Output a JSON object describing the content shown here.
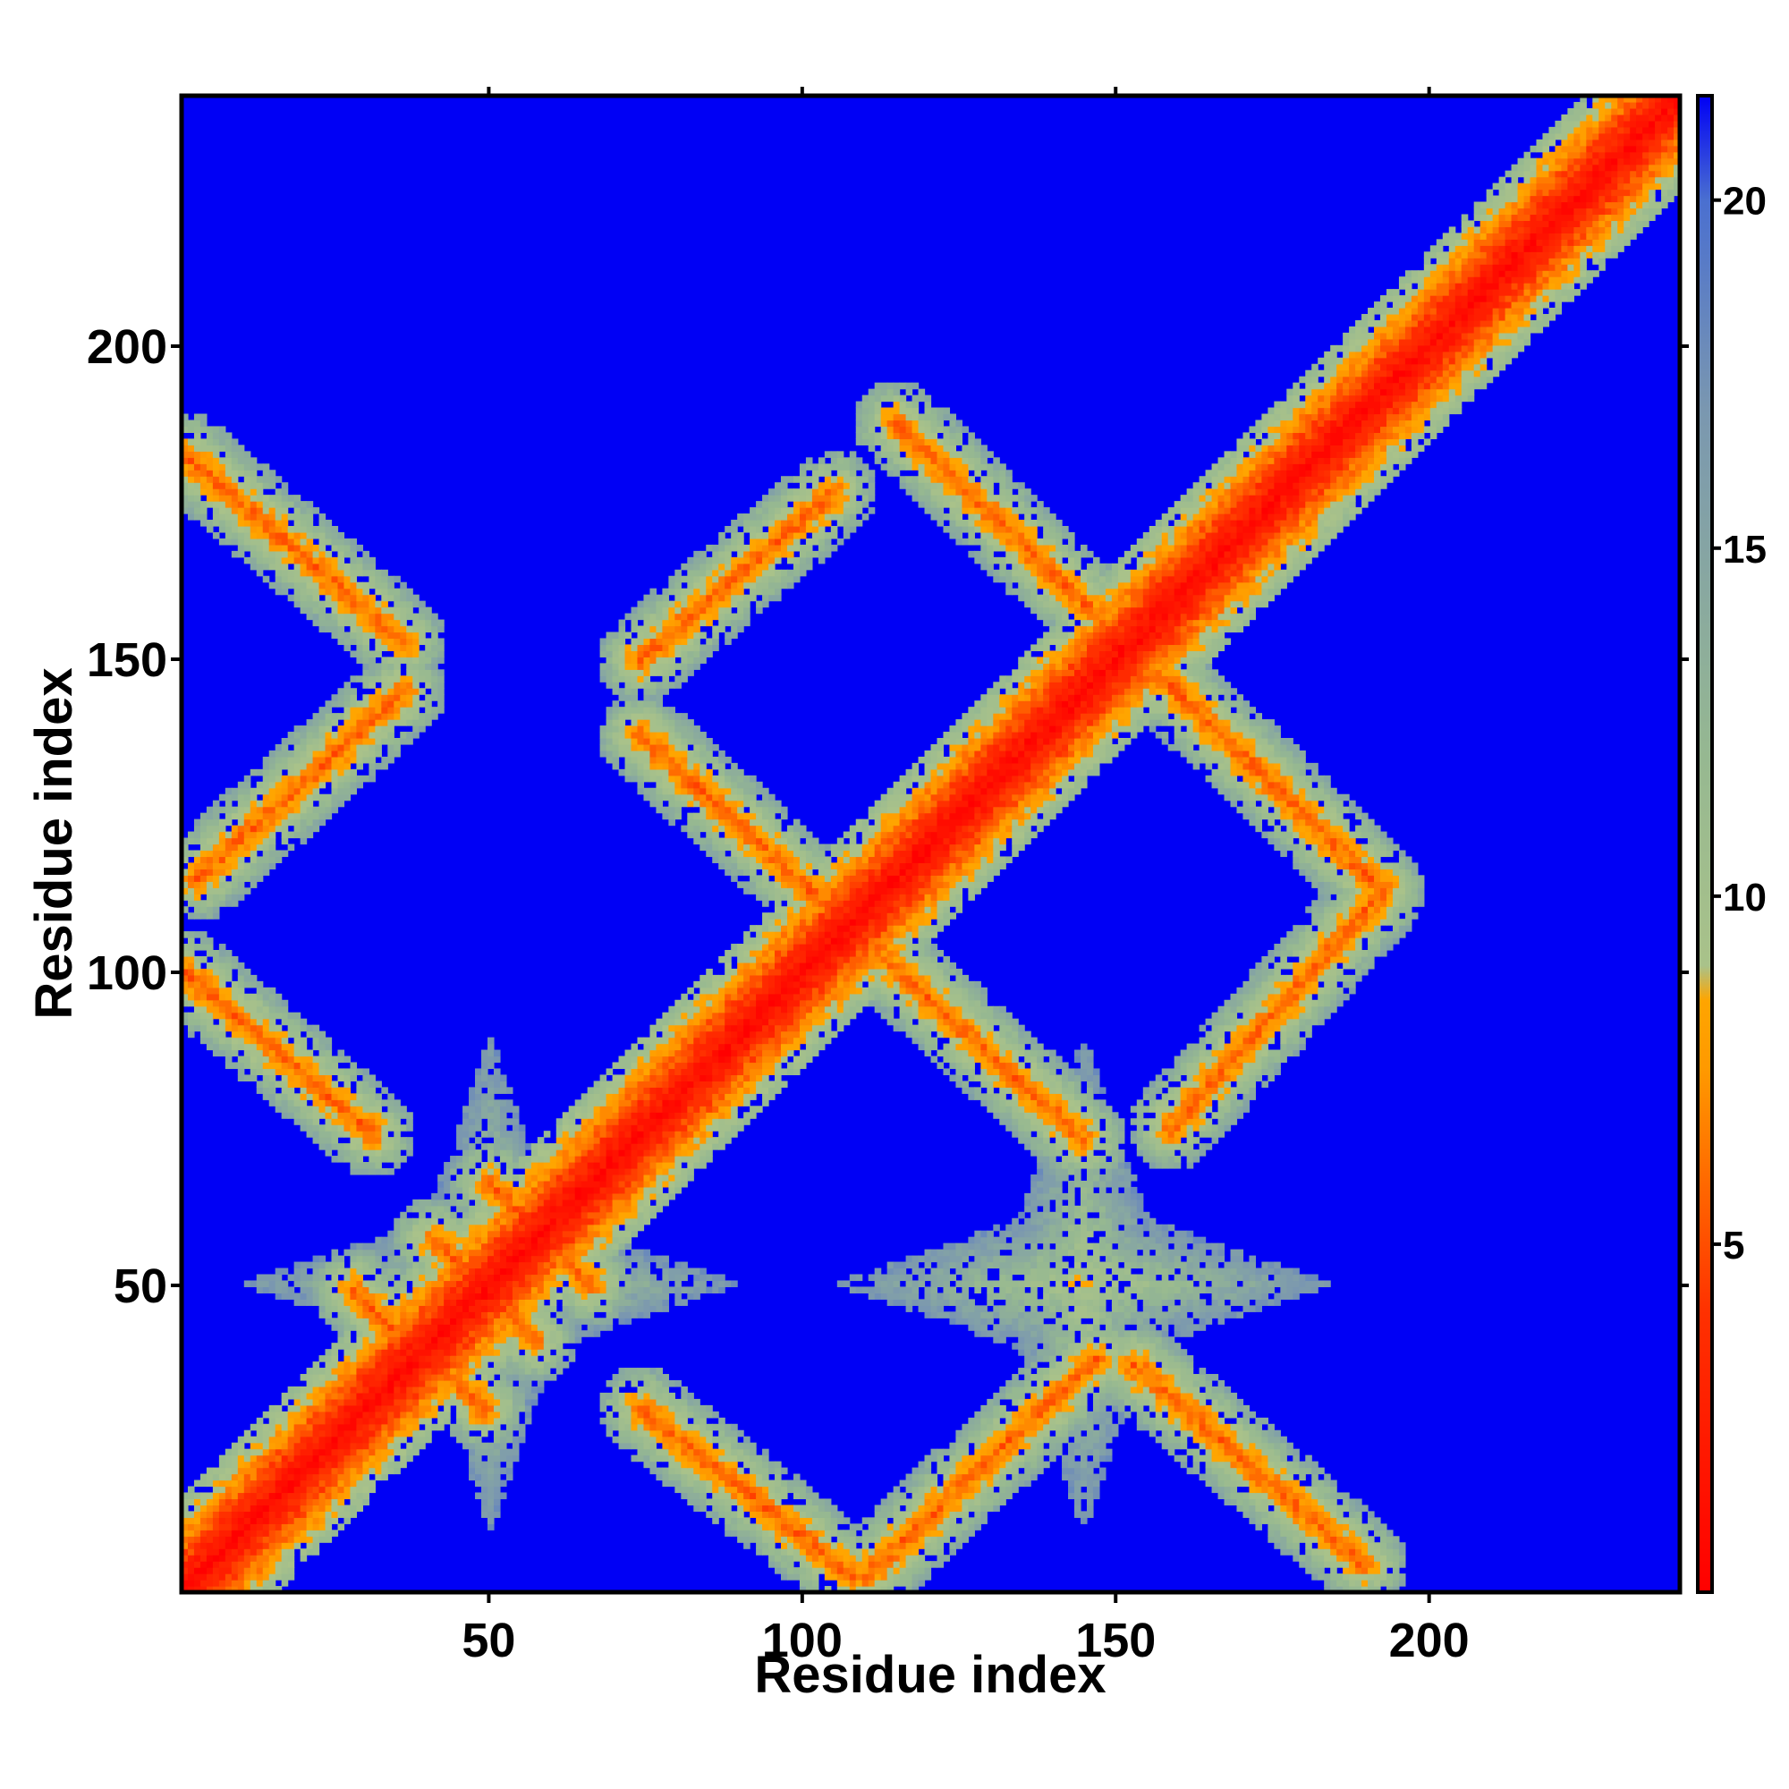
{
  "chart_data": {
    "type": "heatmap",
    "title": "",
    "xlabel": "Residue index",
    "ylabel": "Residue index",
    "xlim": [
      1,
      240
    ],
    "ylim": [
      1,
      240
    ],
    "x_ticks": [
      50,
      100,
      150,
      200
    ],
    "y_ticks": [
      50,
      100,
      150,
      200
    ],
    "x_tick_labels": [
      "50",
      "100",
      "150",
      "200"
    ],
    "y_tick_labels": [
      "50",
      "100",
      "150",
      "200"
    ],
    "colorbar": {
      "range": [
        0,
        21.5
      ],
      "ticks": [
        5,
        10,
        15,
        20
      ],
      "tick_labels": [
        "5",
        "10",
        "15",
        "20"
      ],
      "stops": [
        {
          "value": 0,
          "color": "#ff0000"
        },
        {
          "value": 4,
          "color": "#ff3000"
        },
        {
          "value": 7.5,
          "color": "#ff9900"
        },
        {
          "value": 8.5,
          "color": "#ffa500"
        },
        {
          "value": 9,
          "color": "#a9c28a"
        },
        {
          "value": 12,
          "color": "#96b891"
        },
        {
          "value": 17,
          "color": "#7a97b0"
        },
        {
          "value": 20,
          "color": "#4a6fd0"
        },
        {
          "value": 21.5,
          "color": "#0000f5"
        }
      ]
    },
    "background_value": 21.5,
    "grid": false,
    "features": [
      {
        "kind": "diagonal",
        "from": [
          1,
          1
        ],
        "to": [
          240,
          240
        ]
      },
      {
        "kind": "contact_band",
        "from": [
          1,
          183
        ],
        "to": [
          36,
          153
        ]
      },
      {
        "kind": "contact_band",
        "from": [
          74,
          138
        ],
        "to": [
          145,
          73
        ]
      },
      {
        "kind": "contact_band",
        "from": [
          115,
          188
        ],
        "to": [
          193,
          113
        ]
      },
      {
        "kind": "contact_band",
        "from": [
          153,
          37
        ],
        "to": [
          190,
          5
        ]
      },
      {
        "kind": "contact_band",
        "from": [
          74,
          30
        ],
        "to": [
          108,
          3
        ]
      },
      {
        "kind": "contact_band",
        "from": [
          1,
          100
        ],
        "to": [
          31,
          74
        ]
      },
      {
        "kind": "contact_band",
        "from": [
          3,
          115
        ],
        "to": [
          36,
          145
        ]
      },
      {
        "kind": "contact_band",
        "from": [
          74,
          150
        ],
        "to": [
          105,
          177
        ]
      },
      {
        "kind": "contact_band",
        "from": [
          159,
          75
        ],
        "to": [
          193,
          113
        ]
      },
      {
        "kind": "contact_band",
        "from": [
          110,
          3
        ],
        "to": [
          147,
          38
        ]
      },
      {
        "kind": "contact_band",
        "from": [
          28,
          49
        ],
        "to": [
          36,
          41
        ]
      },
      {
        "kind": "contact_band",
        "from": [
          42,
          37
        ],
        "to": [
          49,
          30
        ]
      },
      {
        "kind": "contact_band",
        "from": [
          41,
          57
        ],
        "to": [
          57,
          41
        ]
      },
      {
        "kind": "contact_band",
        "from": [
          50,
          66
        ],
        "to": [
          66,
          50
        ]
      },
      {
        "kind": "star",
        "center": [
          50,
          50
        ]
      },
      {
        "kind": "star",
        "center": [
          145,
          50
        ]
      }
    ]
  }
}
